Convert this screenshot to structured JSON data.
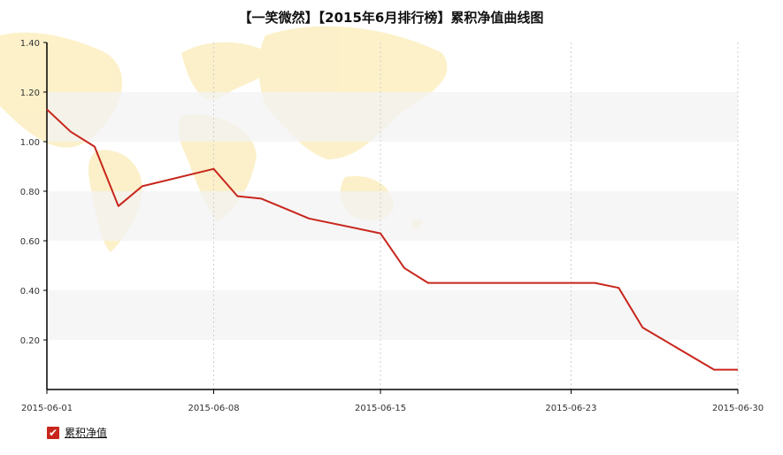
{
  "chart_data": {
    "type": "line",
    "title": "【一笑微然】【2015年6月排行榜】累积净值曲线图",
    "xlabel": "",
    "ylabel": "",
    "ylim": [
      0,
      1.4
    ],
    "yticks": [
      "0.20",
      "0.40",
      "0.60",
      "0.80",
      "1.00",
      "1.20",
      "1.40"
    ],
    "xticks": [
      "2015-06-01",
      "2015-06-08",
      "2015-06-15",
      "2015-06-23",
      "2015-06-30"
    ],
    "grid": "horizontal bands, vertical dotted lines at labeled dates",
    "legend_position": "bottom-left",
    "series": [
      {
        "name": "累积净值",
        "color": "#c8261c",
        "x": [
          "2015-06-01",
          "2015-06-02",
          "2015-06-03",
          "2015-06-04",
          "2015-06-05",
          "2015-06-08",
          "2015-06-09",
          "2015-06-10",
          "2015-06-11",
          "2015-06-12",
          "2015-06-15",
          "2015-06-16",
          "2015-06-17",
          "2015-06-18",
          "2015-06-19",
          "2015-06-22",
          "2015-06-23",
          "2015-06-24",
          "2015-06-25",
          "2015-06-26",
          "2015-06-29",
          "2015-06-30"
        ],
        "values": [
          1.13,
          1.04,
          0.98,
          0.74,
          0.82,
          0.89,
          0.78,
          0.77,
          0.73,
          0.69,
          0.63,
          0.49,
          0.43,
          0.43,
          0.43,
          0.43,
          0.43,
          0.43,
          0.41,
          0.25,
          0.08,
          0.08
        ]
      }
    ]
  },
  "legend": {
    "check_icon": "✔",
    "label": "累积净值"
  }
}
